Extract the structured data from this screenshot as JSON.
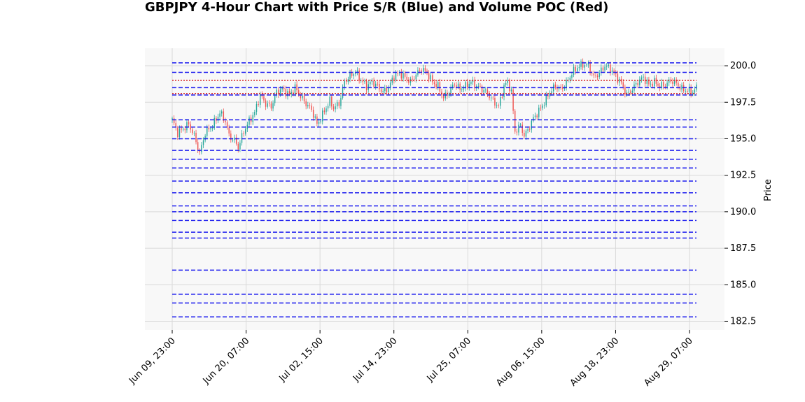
{
  "chart_data": {
    "type": "candlestick",
    "title": "GBPJPY 4-Hour Chart with Price S/R (Blue) and Volume POC (Red)",
    "xlabel": "",
    "ylabel": "Price",
    "ylim": [
      181.9,
      201.2
    ],
    "yticks": [
      182.5,
      185.0,
      187.5,
      190.0,
      192.5,
      195.0,
      197.5,
      200.0
    ],
    "ytick_labels": [
      "182.5",
      "185.0",
      "187.5",
      "190.0",
      "192.5",
      "195.0",
      "197.5",
      "200.0"
    ],
    "xtick_labels": [
      "Jun 09, 23:00",
      "Jun 20, 07:00",
      "Jul 02, 15:00",
      "Jul 14, 23:00",
      "Jul 25, 07:00",
      "Aug 06, 15:00",
      "Aug 18, 23:00",
      "Aug 29, 07:00"
    ],
    "grid": true,
    "colors": {
      "up": "#26a69a",
      "down": "#ef5350",
      "support_resistance": "#1a1aee",
      "poc": "#d62728",
      "plot_bg": "#f8f8f8",
      "grid": "#d9d9d9"
    },
    "support_resistance_levels": [
      200.2,
      199.55,
      198.5,
      198.0,
      196.3,
      195.8,
      195.0,
      194.2,
      193.6,
      193.0,
      192.1,
      191.3,
      190.4,
      190.0,
      189.4,
      188.6,
      188.2,
      186.0,
      184.35,
      183.75,
      182.8
    ],
    "poc_levels": [
      199.0,
      198.1
    ],
    "price_anchors": [
      [
        0,
        196.3
      ],
      [
        3,
        195.4
      ],
      [
        6,
        195.7
      ],
      [
        9,
        196.0
      ],
      [
        12,
        195.2
      ],
      [
        15,
        194.0
      ],
      [
        18,
        195.4
      ],
      [
        22,
        195.9
      ],
      [
        26,
        196.8
      ],
      [
        29,
        196.2
      ],
      [
        31,
        195.2
      ],
      [
        34,
        194.9
      ],
      [
        36,
        194.4
      ],
      [
        39,
        195.5
      ],
      [
        42,
        196.2
      ],
      [
        45,
        196.8
      ],
      [
        48,
        198.0
      ],
      [
        51,
        197.4
      ],
      [
        54,
        197.2
      ],
      [
        57,
        198.2
      ],
      [
        60,
        198.4
      ],
      [
        64,
        198.0
      ],
      [
        67,
        198.5
      ],
      [
        70,
        197.9
      ],
      [
        73,
        197.4
      ],
      [
        76,
        197.0
      ],
      [
        79,
        196.0
      ],
      [
        81,
        196.4
      ],
      [
        83,
        196.9
      ],
      [
        86,
        197.6
      ],
      [
        88,
        197.1
      ],
      [
        91,
        197.4
      ],
      [
        94,
        198.9
      ],
      [
        97,
        199.3
      ],
      [
        100,
        199.6
      ],
      [
        103,
        199.0
      ],
      [
        106,
        198.6
      ],
      [
        109,
        198.9
      ],
      [
        112,
        198.6
      ],
      [
        115,
        198.2
      ],
      [
        118,
        198.5
      ],
      [
        121,
        199.3
      ],
      [
        124,
        199.5
      ],
      [
        127,
        199.2
      ],
      [
        130,
        198.9
      ],
      [
        133,
        199.4
      ],
      [
        136,
        199.8
      ],
      [
        139,
        199.5
      ],
      [
        142,
        198.9
      ],
      [
        145,
        198.6
      ],
      [
        148,
        197.8
      ],
      [
        151,
        198.2
      ],
      [
        154,
        198.8
      ],
      [
        157,
        198.4
      ],
      [
        160,
        198.6
      ],
      [
        163,
        198.9
      ],
      [
        166,
        198.6
      ],
      [
        169,
        198.4
      ],
      [
        172,
        198.1
      ],
      [
        175,
        197.6
      ],
      [
        178,
        197.2
      ],
      [
        181,
        198.6
      ],
      [
        183,
        198.9
      ],
      [
        185,
        198.2
      ],
      [
        187,
        195.5
      ],
      [
        190,
        195.9
      ],
      [
        192,
        195.2
      ],
      [
        194,
        195.6
      ],
      [
        197,
        196.4
      ],
      [
        200,
        196.9
      ],
      [
        203,
        197.5
      ],
      [
        206,
        198.2
      ],
      [
        209,
        198.6
      ],
      [
        212,
        198.4
      ],
      [
        215,
        198.8
      ],
      [
        218,
        199.5
      ],
      [
        221,
        199.9
      ],
      [
        224,
        200.1
      ],
      [
        227,
        200.0
      ],
      [
        230,
        199.2
      ],
      [
        233,
        199.5
      ],
      [
        236,
        200.0
      ],
      [
        239,
        199.8
      ],
      [
        242,
        199.3
      ],
      [
        245,
        198.8
      ],
      [
        248,
        198.0
      ],
      [
        251,
        198.4
      ],
      [
        254,
        198.9
      ],
      [
        257,
        199.2
      ],
      [
        260,
        198.7
      ],
      [
        263,
        198.9
      ],
      [
        266,
        198.6
      ],
      [
        269,
        198.7
      ],
      [
        272,
        199.0
      ],
      [
        275,
        198.8
      ],
      [
        278,
        198.4
      ],
      [
        281,
        198.3
      ],
      [
        284,
        198.2
      ],
      [
        286,
        198.5
      ]
    ],
    "bars_count": 287
  }
}
